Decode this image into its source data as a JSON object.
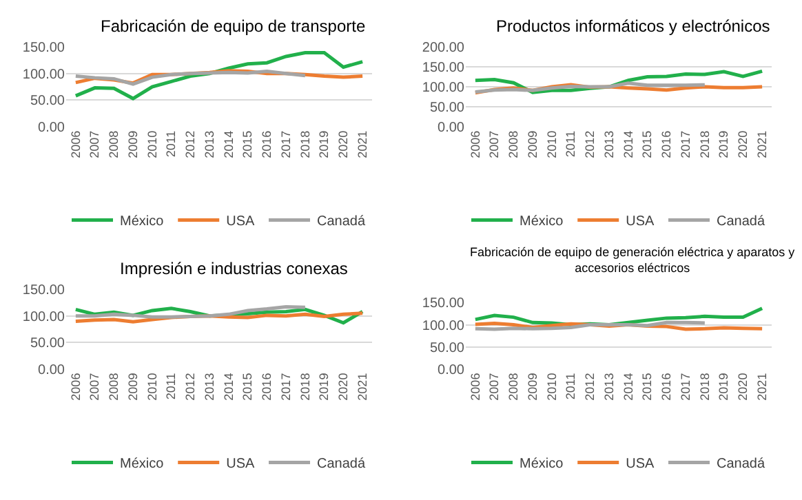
{
  "chart_data": [
    {
      "type": "line",
      "title": "Fabricación de equipo de transporte",
      "categories": [
        "2006",
        "2007",
        "2008",
        "2009",
        "2010",
        "2011",
        "2012",
        "2013",
        "2014",
        "2015",
        "2016",
        "2017",
        "2018",
        "2019",
        "2020",
        "2021"
      ],
      "ylim": [
        0,
        150
      ],
      "yticks": [
        {
          "value": 0,
          "label": "0.00"
        },
        {
          "value": 50,
          "label": "50.00"
        },
        {
          "value": 100,
          "label": "100.00"
        },
        {
          "value": 150,
          "label": "150.00"
        }
      ],
      "grid": "y",
      "legend": "bottom",
      "series": [
        {
          "name": "México",
          "color": "#21b04b",
          "values": [
            58,
            73,
            72,
            53,
            75,
            85,
            95,
            100,
            110,
            118,
            120,
            132,
            139,
            139,
            112,
            122
          ]
        },
        {
          "name": "USA",
          "color": "#ed7d31",
          "values": [
            83,
            91,
            88,
            82,
            98,
            98,
            100,
            102,
            105,
            104,
            100,
            100,
            98,
            95,
            93,
            95
          ]
        },
        {
          "name": "Canadá",
          "color": "#a5a5a5",
          "values": [
            95,
            92,
            90,
            80,
            93,
            98,
            100,
            101,
            102,
            101,
            104,
            100,
            96,
            null,
            null,
            null
          ]
        }
      ]
    },
    {
      "type": "line",
      "title": "Productos informáticos y electrónicos",
      "categories": [
        "2006",
        "2007",
        "2008",
        "2009",
        "2010",
        "2011",
        "2012",
        "2013",
        "2014",
        "2015",
        "2016",
        "2017",
        "2018",
        "2019",
        "2020",
        "2021"
      ],
      "ylim": [
        0,
        200
      ],
      "yticks": [
        {
          "value": 0,
          "label": "0.00"
        },
        {
          "value": 50,
          "label": "50.00"
        },
        {
          "value": 100,
          "label": "100.00"
        },
        {
          "value": 150,
          "label": "150.00"
        },
        {
          "value": 200,
          "label": "200.00"
        }
      ],
      "grid": "y",
      "legend": "bottom",
      "series": [
        {
          "name": "México",
          "color": "#21b04b",
          "values": [
            116,
            118,
            110,
            86,
            91,
            91,
            96,
            100,
            116,
            125,
            126,
            132,
            131,
            138,
            126,
            139
          ]
        },
        {
          "name": "USA",
          "color": "#ed7d31",
          "values": [
            85,
            93,
            97,
            91,
            100,
            105,
            99,
            100,
            97,
            95,
            92,
            97,
            100,
            98,
            98,
            100
          ]
        },
        {
          "name": "Canadá",
          "color": "#a5a5a5",
          "values": [
            87,
            92,
            93,
            91,
            97,
            101,
            100,
            100,
            109,
            104,
            104,
            104,
            105,
            null,
            null,
            null
          ]
        }
      ]
    },
    {
      "type": "line",
      "title": "Impresión e industrias conexas",
      "categories": [
        "2006",
        "2007",
        "2008",
        "2009",
        "2010",
        "2011",
        "2012",
        "2013",
        "2014",
        "2015",
        "2016",
        "2017",
        "2018",
        "2019",
        "2020",
        "2021"
      ],
      "ylim": [
        0,
        150
      ],
      "yticks": [
        {
          "value": 0,
          "label": "0.00"
        },
        {
          "value": 50,
          "label": "50.00"
        },
        {
          "value": 100,
          "label": "100.00"
        },
        {
          "value": 150,
          "label": "150.00"
        }
      ],
      "grid": "y",
      "legend": "bottom",
      "series": [
        {
          "name": "México",
          "color": "#21b04b",
          "values": [
            112,
            103,
            107,
            101,
            110,
            114,
            108,
            100,
            102,
            104,
            107,
            108,
            112,
            101,
            87,
            108
          ]
        },
        {
          "name": "USA",
          "color": "#ed7d31",
          "values": [
            90,
            92,
            93,
            89,
            93,
            97,
            99,
            100,
            98,
            97,
            101,
            100,
            103,
            99,
            103,
            105
          ]
        },
        {
          "name": "Canadá",
          "color": "#a5a5a5",
          "values": [
            100,
            100,
            103,
            101,
            98,
            98,
            99,
            100,
            103,
            110,
            113,
            117,
            116,
            null,
            null,
            null
          ]
        }
      ]
    },
    {
      "type": "line",
      "title": "Fabricación de equipo de generación eléctrica y aparatos y accesorios eléctricos",
      "categories": [
        "2006",
        "2007",
        "2008",
        "2009",
        "2010",
        "2011",
        "2012",
        "2013",
        "2014",
        "2015",
        "2016",
        "2017",
        "2018",
        "2019",
        "2020",
        "2021"
      ],
      "ylim": [
        0,
        150
      ],
      "yticks": [
        {
          "value": 0,
          "label": "0.00"
        },
        {
          "value": 50,
          "label": "50.00"
        },
        {
          "value": 100,
          "label": "100.00"
        },
        {
          "value": 150,
          "label": "150.00"
        }
      ],
      "grid": "y",
      "legend": "bottom",
      "series": [
        {
          "name": "México",
          "color": "#21b04b",
          "values": [
            112,
            121,
            117,
            105,
            104,
            100,
            102,
            100,
            105,
            110,
            115,
            116,
            119,
            117,
            117,
            137
          ]
        },
        {
          "name": "USA",
          "color": "#ed7d31",
          "values": [
            101,
            103,
            100,
            94,
            98,
            102,
            100,
            97,
            100,
            97,
            96,
            90,
            91,
            93,
            92,
            91
          ]
        },
        {
          "name": "Canadá",
          "color": "#a5a5a5",
          "values": [
            91,
            90,
            92,
            91,
            92,
            94,
            100,
            100,
            100,
            98,
            105,
            105,
            104,
            null,
            null,
            null
          ]
        }
      ]
    }
  ]
}
